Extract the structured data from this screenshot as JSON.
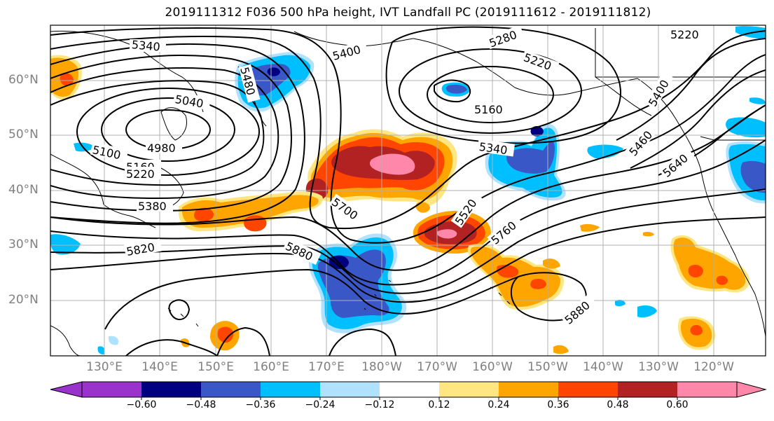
{
  "title": "2019111312 F036 500 hPa height, IVT Landfall PC (2019111612 - 2019111812)",
  "lat_labels": [
    "60°N",
    "50°N",
    "40°N",
    "30°N",
    "20°N"
  ],
  "lon_labels": [
    "130°E",
    "140°E",
    "150°E",
    "160°E",
    "170°E",
    "180°W",
    "170°W",
    "160°W",
    "150°W",
    "140°W",
    "130°W",
    "120°W"
  ],
  "contour_labels": [
    "5340",
    "5400",
    "5280",
    "5220",
    "5220",
    "5160",
    "5040",
    "4980",
    "5100",
    "5160",
    "5220",
    "5340",
    "5400",
    "5460",
    "5640",
    "5380",
    "5700",
    "5520",
    "5760",
    "5820",
    "5880",
    "5880",
    "5480"
  ],
  "colorbar": {
    "ticks": [
      "−0.60",
      "−0.48",
      "−0.36",
      "−0.24",
      "−0.12",
      "0.12",
      "0.24",
      "0.36",
      "0.48",
      "0.60"
    ],
    "colors": [
      "#9933cc",
      "#000080",
      "#3a57c8",
      "#00bfff",
      "#b0e2ff",
      "#ffffff",
      "#ffe680",
      "#ffa500",
      "#ff4500",
      "#b22222",
      "#ff88aa"
    ]
  },
  "colors": {
    "pink": "#ff88aa",
    "darkred": "#b22222",
    "redorange": "#ff4500",
    "orange": "#ffa500",
    "yellow": "#ffe680",
    "lightblue": "#b0e2ff",
    "skyblue": "#00bfff",
    "medblue": "#3a57c8",
    "navy": "#000080"
  }
}
